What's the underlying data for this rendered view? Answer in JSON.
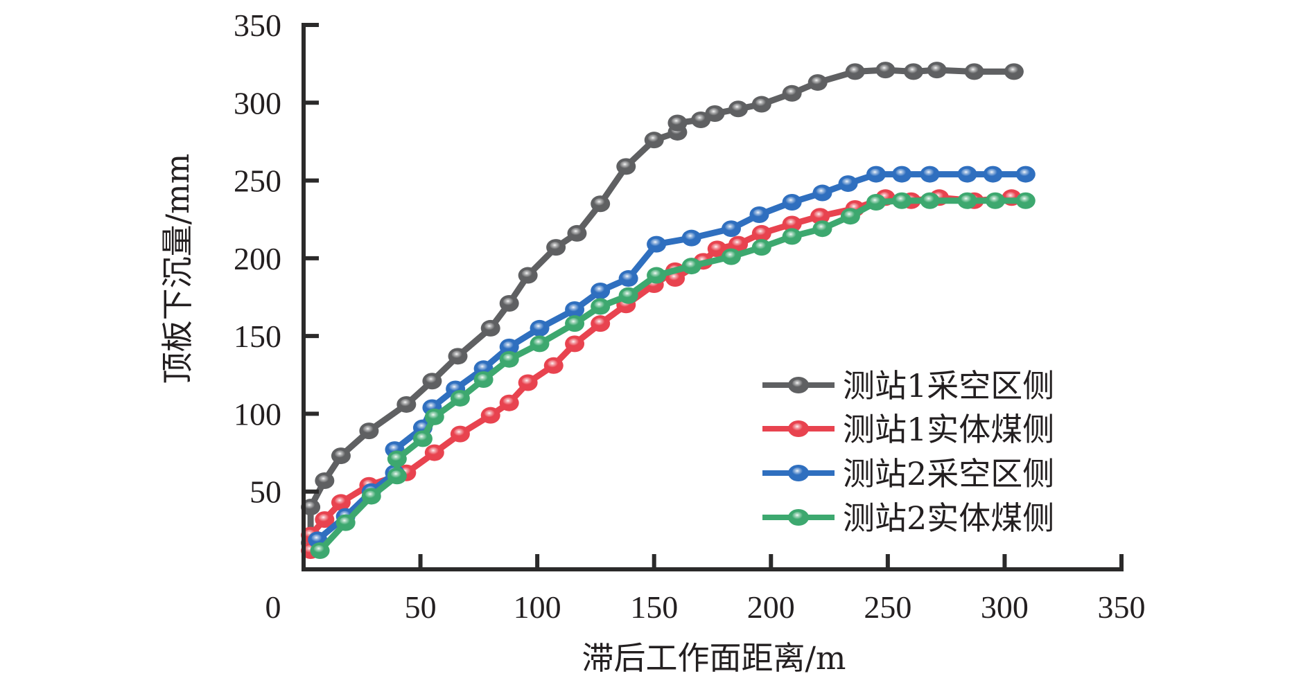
{
  "chart_data": {
    "type": "line",
    "title": "",
    "xlabel": "滞后工作面距离/m",
    "ylabel": "顶板下沉量/mm",
    "xlim": [
      0,
      350
    ],
    "ylim": [
      0,
      350
    ],
    "x_ticks": [
      50,
      100,
      150,
      200,
      250,
      300,
      350
    ],
    "y_ticks": [
      50,
      100,
      150,
      200,
      250,
      300,
      350
    ],
    "origin_label": "0",
    "grid": false,
    "legend_position": "bottom-right",
    "series": [
      {
        "name": "测站1采空区侧",
        "color": "#5f6062",
        "points": [
          [
            3,
            17
          ],
          [
            3,
            40
          ],
          [
            9,
            57
          ],
          [
            16,
            73
          ],
          [
            28,
            89
          ],
          [
            44,
            106
          ],
          [
            55,
            121
          ],
          [
            66,
            137
          ],
          [
            80,
            155
          ],
          [
            88,
            171
          ],
          [
            96,
            189
          ],
          [
            108,
            207
          ],
          [
            117,
            216
          ],
          [
            127,
            235
          ],
          [
            138,
            259
          ],
          [
            150,
            276
          ],
          [
            160,
            281
          ],
          [
            160,
            287
          ],
          [
            170,
            289
          ],
          [
            176,
            293
          ],
          [
            186,
            296
          ],
          [
            196,
            299
          ],
          [
            209,
            306
          ],
          [
            220,
            313
          ],
          [
            236,
            320
          ],
          [
            249,
            321
          ],
          [
            261,
            320
          ],
          [
            271,
            321
          ],
          [
            287,
            320
          ],
          [
            304,
            320
          ]
        ]
      },
      {
        "name": "测站1实体煤侧",
        "color": "#e8434f",
        "points": [
          [
            3,
            12
          ],
          [
            3,
            22
          ],
          [
            9,
            32
          ],
          [
            16,
            43
          ],
          [
            28,
            54
          ],
          [
            44,
            62
          ],
          [
            56,
            75
          ],
          [
            67,
            87
          ],
          [
            80,
            99
          ],
          [
            88,
            107
          ],
          [
            96,
            120
          ],
          [
            107,
            131
          ],
          [
            116,
            145
          ],
          [
            127,
            158
          ],
          [
            138,
            170
          ],
          [
            150,
            183
          ],
          [
            159,
            192
          ],
          [
            159,
            187
          ],
          [
            171,
            198
          ],
          [
            177,
            206
          ],
          [
            186,
            209
          ],
          [
            196,
            216
          ],
          [
            209,
            222
          ],
          [
            221,
            227
          ],
          [
            236,
            232
          ],
          [
            249,
            239
          ],
          [
            260,
            237
          ],
          [
            272,
            239
          ],
          [
            287,
            237
          ],
          [
            303,
            239
          ]
        ]
      },
      {
        "name": "测站2采空区侧",
        "color": "#2f6fbf",
        "points": [
          [
            6,
            19
          ],
          [
            18,
            34
          ],
          [
            29,
            50
          ],
          [
            39,
            62
          ],
          [
            39,
            77
          ],
          [
            51,
            91
          ],
          [
            55,
            104
          ],
          [
            65,
            116
          ],
          [
            77,
            129
          ],
          [
            88,
            143
          ],
          [
            101,
            155
          ],
          [
            116,
            167
          ],
          [
            127,
            179
          ],
          [
            139,
            187
          ],
          [
            151,
            209
          ],
          [
            166,
            213
          ],
          [
            183,
            219
          ],
          [
            195,
            228
          ],
          [
            209,
            236
          ],
          [
            222,
            242
          ],
          [
            233,
            248
          ],
          [
            245,
            254
          ],
          [
            256,
            254
          ],
          [
            268,
            254
          ],
          [
            284,
            254
          ],
          [
            295,
            254
          ],
          [
            309,
            254
          ]
        ]
      },
      {
        "name": "测站2实体煤侧",
        "color": "#3da86f",
        "points": [
          [
            7,
            12
          ],
          [
            18,
            30
          ],
          [
            29,
            47
          ],
          [
            40,
            60
          ],
          [
            40,
            71
          ],
          [
            51,
            84
          ],
          [
            56,
            98
          ],
          [
            67,
            110
          ],
          [
            77,
            122
          ],
          [
            88,
            135
          ],
          [
            101,
            145
          ],
          [
            116,
            158
          ],
          [
            127,
            169
          ],
          [
            139,
            176
          ],
          [
            151,
            189
          ],
          [
            166,
            195
          ],
          [
            183,
            201
          ],
          [
            196,
            207
          ],
          [
            209,
            214
          ],
          [
            222,
            219
          ],
          [
            234,
            227
          ],
          [
            245,
            236
          ],
          [
            256,
            237
          ],
          [
            268,
            237
          ],
          [
            284,
            237
          ],
          [
            296,
            237
          ],
          [
            309,
            237
          ]
        ]
      }
    ]
  }
}
